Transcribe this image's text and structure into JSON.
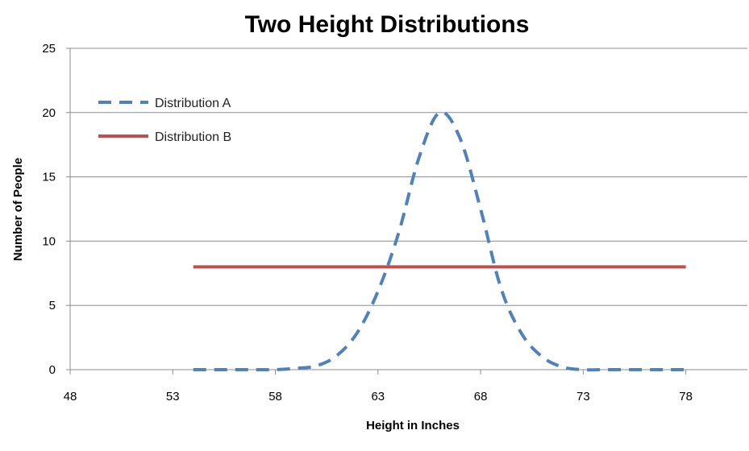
{
  "chart_data": {
    "type": "line",
    "title": "Two Height Distributions",
    "xlabel": "Height in Inches",
    "ylabel": "Number of People",
    "xlim": [
      48,
      81
    ],
    "ylim": [
      0,
      25
    ],
    "x_ticks": [
      "48",
      "53",
      "58",
      "63",
      "68",
      "73",
      "78"
    ],
    "y_ticks": [
      "0",
      "5",
      "10",
      "15",
      "20",
      "25"
    ],
    "grid": "horizontal",
    "legend_position": "top-left",
    "series": [
      {
        "name": "Distribution A",
        "color": "#4F81BD",
        "style": "dashed",
        "x": [
          54,
          55,
          56,
          57,
          58,
          59,
          60,
          61,
          62,
          63,
          64,
          65,
          66,
          67,
          68,
          69,
          70,
          71,
          72,
          73,
          74,
          75,
          76,
          77,
          78
        ],
        "values": [
          0,
          0,
          0,
          0,
          0,
          0.1,
          0.3,
          1.1,
          2.9,
          6.1,
          10.6,
          16.5,
          20,
          18,
          12.5,
          6.3,
          2.8,
          1.0,
          0.2,
          0,
          0,
          0,
          0,
          0,
          0
        ]
      },
      {
        "name": "Distribution B",
        "color": "#C0504D",
        "style": "solid",
        "x": [
          54,
          78
        ],
        "values": [
          8,
          8
        ]
      }
    ]
  }
}
